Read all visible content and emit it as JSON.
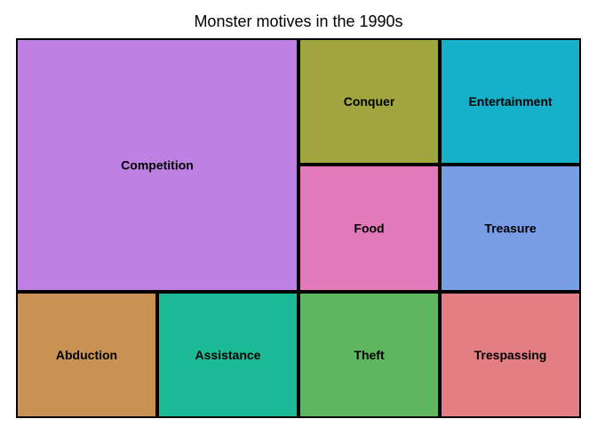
{
  "chart_data": {
    "type": "treemap",
    "title": "Monster motives in the 1990s",
    "tiles": [
      {
        "label": "Competition",
        "value": 4,
        "color": "#BE80E3"
      },
      {
        "label": "Conquer",
        "value": 1,
        "color": "#A0A53F"
      },
      {
        "label": "Entertainment",
        "value": 1,
        "color": "#16B0CA"
      },
      {
        "label": "Food",
        "value": 1,
        "color": "#E27AB9"
      },
      {
        "label": "Treasure",
        "value": 1,
        "color": "#769DE6"
      },
      {
        "label": "Abduction",
        "value": 1,
        "color": "#C99254"
      },
      {
        "label": "Assistance",
        "value": 1,
        "color": "#1BB995"
      },
      {
        "label": "Theft",
        "value": 1,
        "color": "#5FB661"
      },
      {
        "label": "Trespassing",
        "value": 1,
        "color": "#E37E85"
      }
    ]
  }
}
